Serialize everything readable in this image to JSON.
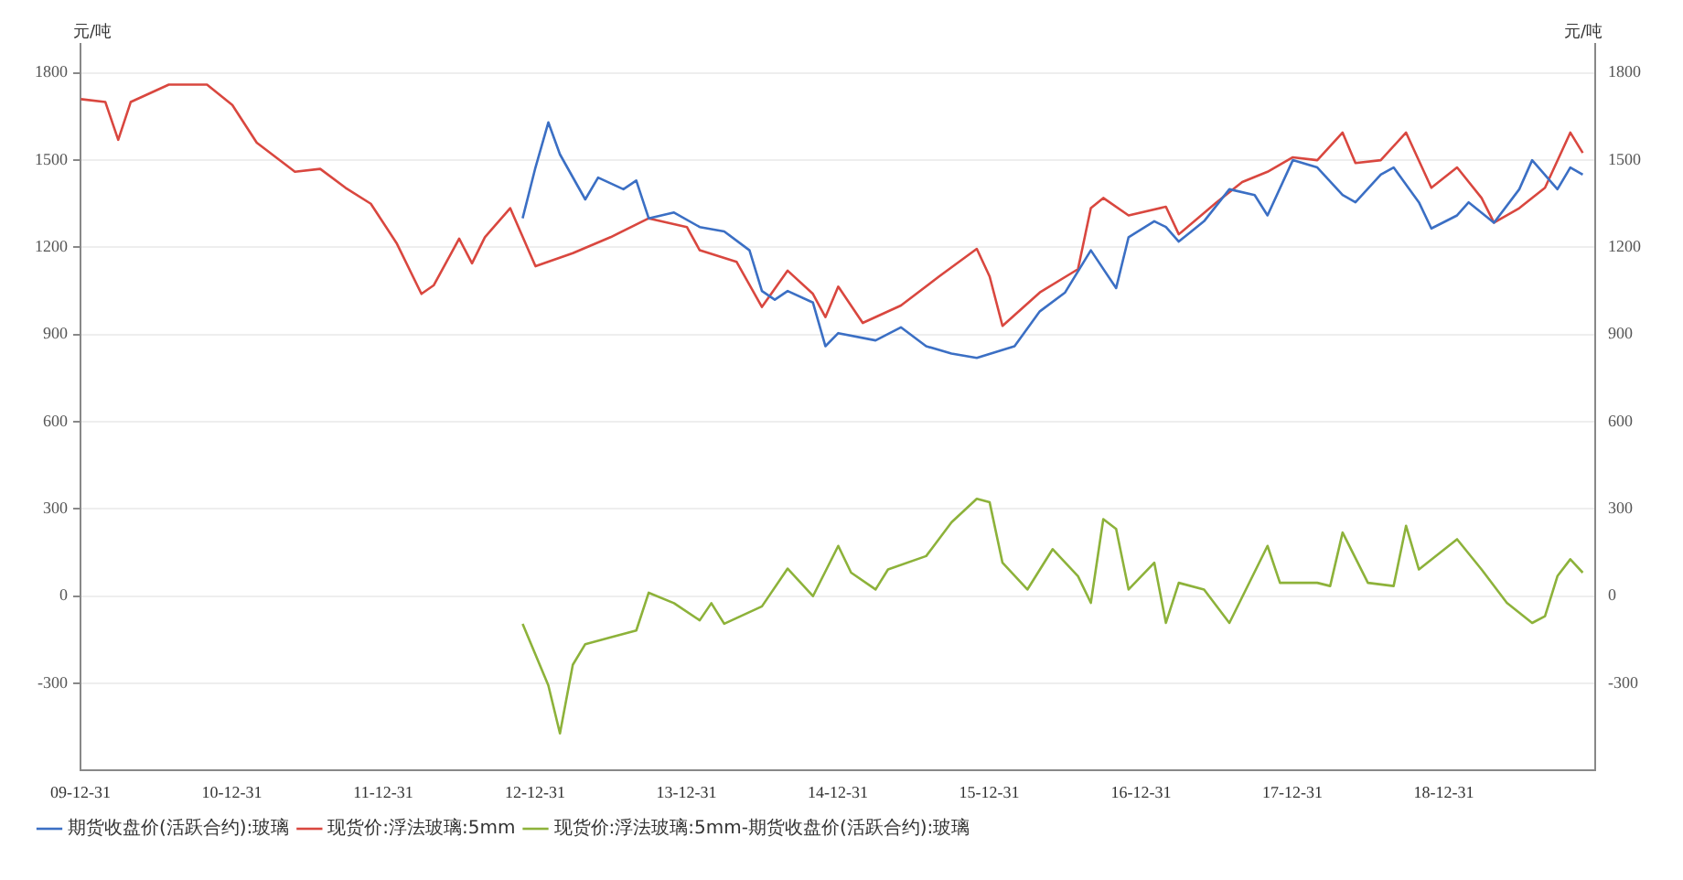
{
  "chart_data": {
    "type": "line",
    "ylabel": "元/吨",
    "y2label": "元/吨",
    "xlim": [
      "2009-12-31",
      "2019-12-31"
    ],
    "xticks": [
      {
        "value": "2009-12-31",
        "label": "09-12-31"
      },
      {
        "value": "2010-12-31",
        "label": "10-12-31"
      },
      {
        "value": "2011-12-31",
        "label": "11-12-31"
      },
      {
        "value": "2012-12-31",
        "label": "12-12-31"
      },
      {
        "value": "2013-12-31",
        "label": "13-12-31"
      },
      {
        "value": "2014-12-31",
        "label": "14-12-31"
      },
      {
        "value": "2015-12-31",
        "label": "15-12-31"
      },
      {
        "value": "2016-12-31",
        "label": "16-12-31"
      },
      {
        "value": "2017-12-31",
        "label": "17-12-31"
      },
      {
        "value": "2018-12-31",
        "label": "18-12-31"
      }
    ],
    "ylim": [
      -600,
      1900
    ],
    "yticks": [
      -300,
      0,
      300,
      600,
      900,
      1200,
      1500,
      1800
    ],
    "y2lim": [
      -600,
      1900
    ],
    "y2ticks": [
      -300,
      0,
      300,
      600,
      900,
      1200,
      1500,
      1800
    ],
    "grid": "y",
    "legend": "bottom",
    "marker": "none",
    "line_style": "solid",
    "series": [
      {
        "name": "期货收盘价(活跃合约):玻璃",
        "color": "#3b6fc4",
        "x": [
          "2012-12",
          "2013-01",
          "2013-02",
          "2013-03",
          "2013-05",
          "2013-06",
          "2013-08",
          "2013-09",
          "2013-10",
          "2013-12",
          "2014-02",
          "2014-04",
          "2014-06",
          "2014-07",
          "2014-08",
          "2014-09",
          "2014-11",
          "2014-12",
          "2015-01",
          "2015-04",
          "2015-06",
          "2015-08",
          "2015-10",
          "2015-12",
          "2016-03",
          "2016-05",
          "2016-07",
          "2016-09",
          "2016-11",
          "2016-12",
          "2017-02",
          "2017-03",
          "2017-04",
          "2017-06",
          "2017-08",
          "2017-10",
          "2017-11",
          "2018-01",
          "2018-03",
          "2018-05",
          "2018-06",
          "2018-08",
          "2018-09",
          "2018-11",
          "2018-12",
          "2019-02",
          "2019-03",
          "2019-05",
          "2019-07",
          "2019-08",
          "2019-10",
          "2019-11",
          "2019-12"
        ],
        "values": [
          1300,
          1475,
          1630,
          1520,
          1365,
          1440,
          1400,
          1430,
          1300,
          1320,
          1270,
          1255,
          1190,
          1050,
          1020,
          1050,
          1010,
          860,
          905,
          880,
          925,
          860,
          835,
          820,
          860,
          980,
          1045,
          1190,
          1060,
          1235,
          1290,
          1270,
          1220,
          1290,
          1400,
          1380,
          1310,
          1500,
          1475,
          1380,
          1355,
          1450,
          1475,
          1355,
          1265,
          1310,
          1355,
          1285,
          1400,
          1500,
          1400,
          1475,
          1450
        ]
      },
      {
        "name": "现货价:浮法玻璃:5mm",
        "color": "#d9473f",
        "x": [
          "2010-01",
          "2010-03",
          "2010-04",
          "2010-05",
          "2010-08",
          "2010-11",
          "2011-01",
          "2011-03",
          "2011-06",
          "2011-08",
          "2011-10",
          "2011-12",
          "2012-02",
          "2012-04",
          "2012-05",
          "2012-07",
          "2012-08",
          "2012-09",
          "2012-11",
          "2013-01",
          "2013-04",
          "2013-07",
          "2013-10",
          "2014-01",
          "2014-02",
          "2014-05",
          "2014-07",
          "2014-09",
          "2014-11",
          "2014-12",
          "2015-01",
          "2015-03",
          "2015-06",
          "2015-09",
          "2015-12",
          "2016-01",
          "2016-02",
          "2016-05",
          "2016-08",
          "2016-09",
          "2016-10",
          "2016-12",
          "2017-03",
          "2017-04",
          "2017-07",
          "2017-09",
          "2017-11",
          "2018-01",
          "2018-03",
          "2018-05",
          "2018-06",
          "2018-08",
          "2018-10",
          "2018-12",
          "2019-02",
          "2019-04",
          "2019-05",
          "2019-07",
          "2019-09",
          "2019-11",
          "2019-12"
        ],
        "values": [
          1710,
          1700,
          1570,
          1700,
          1760,
          1760,
          1690,
          1560,
          1460,
          1470,
          1405,
          1350,
          1215,
          1040,
          1070,
          1230,
          1145,
          1235,
          1335,
          1135,
          1180,
          1235,
          1300,
          1270,
          1190,
          1150,
          995,
          1120,
          1040,
          960,
          1065,
          940,
          1000,
          1100,
          1195,
          1100,
          930,
          1045,
          1125,
          1335,
          1370,
          1310,
          1340,
          1245,
          1355,
          1425,
          1460,
          1510,
          1500,
          1595,
          1490,
          1500,
          1595,
          1405,
          1475,
          1370,
          1285,
          1335,
          1405,
          1595,
          1525
        ]
      },
      {
        "name": "现货价:浮法玻璃:5mm-期货收盘价(活跃合约):玻璃",
        "color": "#8db23a",
        "x": [
          "2012-12",
          "2013-02",
          "2013-03",
          "2013-04",
          "2013-05",
          "2013-07",
          "2013-09",
          "2013-10",
          "2013-12",
          "2014-02",
          "2014-03",
          "2014-04",
          "2014-07",
          "2014-09",
          "2014-11",
          "2015-01",
          "2015-02",
          "2015-04",
          "2015-05",
          "2015-08",
          "2015-10",
          "2015-12",
          "2016-01",
          "2016-02",
          "2016-04",
          "2016-06",
          "2016-08",
          "2016-09",
          "2016-10",
          "2016-11",
          "2016-12",
          "2017-02",
          "2017-03",
          "2017-04",
          "2017-06",
          "2017-08",
          "2017-11",
          "2017-12",
          "2018-03",
          "2018-04",
          "2018-05",
          "2018-07",
          "2018-09",
          "2018-10",
          "2018-11",
          "2019-02",
          "2019-04",
          "2019-06",
          "2019-08",
          "2019-09",
          "2019-10",
          "2019-11",
          "2019-12"
        ],
        "values": [
          -95,
          -307,
          -472,
          -236,
          -165,
          -142,
          -118,
          12,
          -24,
          -83,
          -24,
          -95,
          -35,
          95,
          0,
          173,
          81,
          23,
          92,
          138,
          254,
          335,
          323,
          115,
          23,
          162,
          69,
          -23,
          265,
          231,
          23,
          115,
          -92,
          46,
          23,
          -92,
          173,
          46,
          46,
          35,
          219,
          46,
          35,
          242,
          92,
          196,
          92,
          -23,
          -92,
          -69,
          69,
          127,
          81
        ]
      }
    ]
  }
}
